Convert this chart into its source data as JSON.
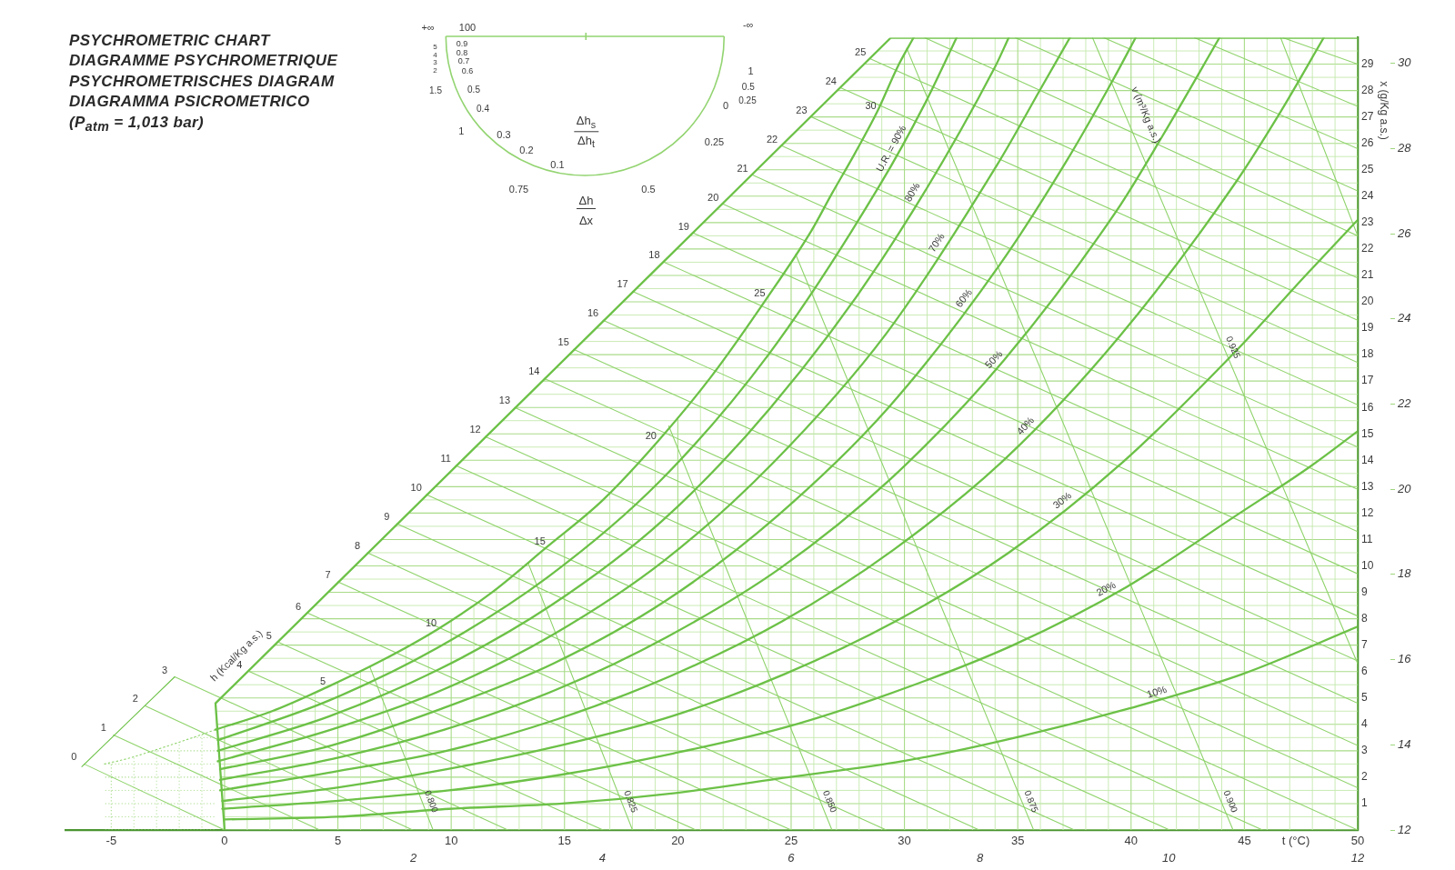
{
  "chart_data": {
    "type": "line",
    "title": "PSYCHROMETRIC CHART",
    "xlabel": "t (°C)",
    "ylabel": "x (g/Kg a.s.)",
    "xlim": [
      -7,
      50
    ],
    "xticks": [
      -5,
      {
        "value": -4,
        "label": null
      },
      {
        "value": -3,
        "label": null
      },
      {
        "value": -2,
        "label": null
      },
      {
        "value": -1,
        "label": null
      },
      0,
      {
        "value": 1,
        "label": null
      },
      {
        "value": 2,
        "label": null
      },
      {
        "value": 3,
        "label": null
      },
      {
        "value": 4,
        "label": null
      },
      5,
      {
        "value": 6,
        "label": null
      },
      {
        "value": 7,
        "label": null
      },
      {
        "value": 8,
        "label": null
      },
      {
        "value": 9,
        "label": null
      },
      10,
      {
        "value": 11,
        "label": null
      },
      {
        "value": 12,
        "label": null
      },
      {
        "value": 13,
        "label": null
      },
      {
        "value": 14,
        "label": null
      },
      15,
      {
        "value": 16,
        "label": null
      },
      {
        "value": 17,
        "label": null
      },
      {
        "value": 18,
        "label": null
      },
      {
        "value": 19,
        "label": null
      },
      20,
      {
        "value": 21,
        "label": null
      },
      {
        "value": 22,
        "label": null
      },
      {
        "value": 23,
        "label": null
      },
      {
        "value": 24,
        "label": null
      },
      25,
      {
        "value": 26,
        "label": null
      },
      {
        "value": 27,
        "label": null
      },
      {
        "value": 28,
        "label": null
      },
      {
        "value": 29,
        "label": null
      },
      30,
      {
        "value": 31,
        "label": null
      },
      {
        "value": 32,
        "label": null
      },
      {
        "value": 33,
        "label": null
      },
      {
        "value": 34,
        "label": null
      },
      35,
      {
        "value": 36,
        "label": null
      },
      {
        "value": 37,
        "label": null
      },
      {
        "value": 38,
        "label": null
      },
      {
        "value": 39,
        "label": null
      },
      40,
      {
        "value": 41,
        "label": null
      },
      {
        "value": 42,
        "label": null
      },
      {
        "value": 43,
        "label": null
      },
      {
        "value": 44,
        "label": null
      },
      45,
      {
        "value": 46,
        "label": null
      },
      {
        "value": 47,
        "label": null
      },
      {
        "value": 48,
        "label": null
      },
      {
        "value": 49,
        "label": null
      },
      50
    ],
    "ylim": [
      0,
      30
    ],
    "yticks": [
      {
        "value": 0,
        "label": null
      },
      {
        "value": 0.5,
        "label": null
      },
      1,
      {
        "value": 1.5,
        "label": null
      },
      2,
      {
        "value": 2.5,
        "label": null
      },
      3,
      {
        "value": 3.5,
        "label": null
      },
      4,
      {
        "value": 4.5,
        "label": null
      },
      5,
      {
        "value": 5.5,
        "label": null
      },
      6,
      {
        "value": 6.5,
        "label": null
      },
      7,
      {
        "value": 7.5,
        "label": null
      },
      8,
      {
        "value": 8.5,
        "label": null
      },
      9,
      {
        "value": 9.5,
        "label": null
      },
      10,
      {
        "value": 10.5,
        "label": null
      },
      11,
      {
        "value": 11.5,
        "label": null
      },
      12,
      {
        "value": 12.5,
        "label": null
      },
      13,
      {
        "value": 13.5,
        "label": null
      },
      14,
      {
        "value": 14.5,
        "label": null
      },
      15,
      {
        "value": 15.5,
        "label": null
      },
      16,
      {
        "value": 16.5,
        "label": null
      },
      17,
      {
        "value": 17.5,
        "label": null
      },
      18,
      {
        "value": 18.5,
        "label": null
      },
      19,
      {
        "value": 19.5,
        "label": null
      },
      20,
      {
        "value": 20.5,
        "label": null
      },
      21,
      {
        "value": 21.5,
        "label": null
      },
      22,
      {
        "value": 22.5,
        "label": null
      },
      23,
      {
        "value": 23.5,
        "label": null
      },
      24,
      {
        "value": 24.5,
        "label": null
      },
      25,
      {
        "value": 25.5,
        "label": null
      },
      26,
      {
        "value": 26.5,
        "label": null
      },
      27,
      {
        "value": 27.5,
        "label": null
      },
      28,
      {
        "value": 28.5,
        "label": null
      },
      29,
      {
        "value": 29.5,
        "label": null
      },
      {
        "value": 30,
        "label": null
      }
    ],
    "x2lim": [
      -1.68,
      12
    ],
    "x2ticks": [
      2,
      4,
      6,
      8,
      10,
      12
    ],
    "y2lim": [
      12,
      30.6
    ],
    "y2ticks": [
      12,
      14,
      16,
      18,
      20,
      22,
      24,
      26,
      28,
      30
    ],
    "grid": true,
    "marker": "none",
    "annotations": [
      "DIAGRAMME PSYCHROMETRIQUE",
      "PSYCHROMETRISCHES DIAGRAM",
      "DIAGRAMMA PSICROMETRICO",
      "(P$_{atm}$ = 1,013 bar)",
      "+∞",
      "100",
      "-∞",
      "0.9",
      "0.8",
      "0.7",
      "0.6",
      "0.5",
      "0.4",
      "0.3",
      "0.2",
      "0.1",
      "5",
      "4",
      "3",
      "2",
      "1.5",
      "1",
      "0.75",
      "0.5",
      "0.25",
      "0",
      "0.25",
      "0.5",
      "1",
      "Δh$_{s}$",
      "Δh$_{t}$",
      "Δh",
      "Δx",
      {
        "text": "5",
        "x": 4.5,
        "y": 5.4
      },
      {
        "text": "10",
        "x": 9.4,
        "y": 7.6
      },
      {
        "text": "15",
        "x": 14.2,
        "y": 10.7
      },
      {
        "text": "20",
        "x": 19.1,
        "y": 14.7
      },
      {
        "text": "25",
        "x": 23.9,
        "y": 20.1
      },
      {
        "text": "30",
        "x": 28.8,
        "y": 27.2
      },
      {
        "text": "h (Kcal/Kg a.s.)",
        "x": 1.1,
        "y": 6.1
      },
      {
        "text": "v (m³/Kg a.s.)",
        "x": 39.9,
        "y": 26.8
      }
    ],
    "series": [
      {
        "color": "#6cc147",
        "x": [
          0,
          -0.4,
          29.4,
          50
        ],
        "values": [
          0,
          4.8,
          30,
          30
        ]
      },
      {
        "color": "#6cc147",
        "x": [
          -0.4,
          2.1,
          4.5,
          6.9,
          9.4,
          11.8,
          14.2,
          16.7,
          19.1,
          21.5,
          23.9,
          25.9,
          26.8,
          27.8,
          28.8,
          29.7,
          30.4
        ],
        "values": [
          3.8,
          4.5,
          5.4,
          6.4,
          7.6,
          9.0,
          10.7,
          12.5,
          14.7,
          17.2,
          20.1,
          22.7,
          24.1,
          25.6,
          27.2,
          28.9,
          30
        ]
      },
      {
        "color": "#8fd36b",
        "line_style": "dotted",
        "x": [
          -5.3,
          -4.3,
          -2.8,
          -1.4,
          -0.4
        ],
        "values": [
          2.5,
          2.7,
          3.1,
          3.5,
          3.8
        ]
      },
      {
        "name": "U.R. = 90%",
        "color": "#6cc147",
        "x": [
          -0.3,
          4.6,
          9.4,
          14.3,
          19.2,
          24.0,
          28.9,
          30.9,
          32.3
        ],
        "values": [
          3.4,
          4.9,
          6.9,
          9.6,
          13.2,
          18.0,
          24.4,
          27.5,
          30
        ]
      },
      {
        "name": "80%",
        "color": "#6cc147",
        "x": [
          -0.3,
          4.6,
          9.5,
          14.4,
          19.3,
          24.1,
          29.0,
          34.0,
          34.6
        ],
        "values": [
          3.0,
          4.3,
          6.1,
          8.5,
          11.7,
          16.0,
          21.6,
          28.9,
          30
        ]
      },
      {
        "name": "70%",
        "color": "#6cc147",
        "x": [
          -0.3,
          4.7,
          9.6,
          14.5,
          19.4,
          24.2,
          29.2,
          34.1,
          36.1,
          37.3
        ],
        "values": [
          2.6,
          3.8,
          5.3,
          7.4,
          10.2,
          13.9,
          18.8,
          25.2,
          28.2,
          30
        ]
      },
      {
        "name": "60%",
        "color": "#6cc147",
        "x": [
          -0.2,
          4.7,
          9.6,
          14.5,
          19.5,
          24.4,
          29.3,
          34.2,
          37.2,
          39.2,
          40.2
        ],
        "values": [
          2.3,
          3.2,
          4.6,
          6.3,
          8.7,
          11.9,
          16.0,
          21.4,
          25.4,
          28.4,
          30
        ]
      },
      {
        "name": "50%",
        "color": "#6cc147",
        "x": [
          -0.2,
          4.8,
          9.7,
          14.6,
          19.5,
          24.5,
          29.4,
          34.4,
          39.4,
          41.4,
          43.9
        ],
        "values": [
          1.9,
          2.7,
          3.8,
          5.3,
          7.3,
          9.9,
          13.3,
          17.8,
          23.5,
          26.3,
          30
        ]
      },
      {
        "name": "40%",
        "color": "#6cc147",
        "x": [
          -0.2,
          4.8,
          9.8,
          14.7,
          19.6,
          24.6,
          29.5,
          34.5,
          39.5,
          44.6,
          46.6,
          48.5
        ],
        "values": [
          1.5,
          2.2,
          3.0,
          4.2,
          5.8,
          7.9,
          10.6,
          14.1,
          18.7,
          24.5,
          27.2,
          30
        ]
      },
      {
        "name": "30%",
        "color": "#6cc147",
        "x": [
          -0.1,
          4.9,
          9.8,
          14.8,
          19.7,
          24.7,
          29.6,
          34.6,
          39.6,
          44.7,
          47.7,
          50
        ],
        "values": [
          1.1,
          1.6,
          2.3,
          3.2,
          4.3,
          5.9,
          7.9,
          10.5,
          13.9,
          18.2,
          21.0,
          23.1
        ]
      },
      {
        "name": "20%",
        "color": "#6cc147",
        "x": [
          -0.1,
          4.9,
          9.9,
          14.9,
          19.8,
          24.8,
          29.8,
          34.8,
          39.8,
          44.8,
          47.8,
          50
        ],
        "values": [
          0.8,
          1.1,
          1.5,
          2.1,
          2.9,
          3.9,
          5.3,
          7.0,
          9.2,
          12.0,
          13.7,
          15.1
        ]
      },
      {
        "name": "10%",
        "color": "#6cc147",
        "x": [
          0,
          5,
          9.9,
          14.9,
          19.9,
          24.9,
          29.9,
          34.9,
          39.9,
          44.9,
          50
        ],
        "values": [
          0.4,
          0.5,
          0.8,
          1.0,
          1.4,
          2.0,
          2.6,
          3.5,
          4.6,
          5.9,
          7.7
        ]
      },
      {
        "color": "#6cc147",
        "x": [
          -6.3,
          -2.2
        ],
        "values": [
          2.4,
          5.8
        ]
      },
      {
        "name": "0",
        "color": "#8fd36b",
        "x": [
          -6.2,
          0
        ],
        "values": [
          2.5,
          0
        ]
      },
      {
        "name": "1",
        "color": "#8fd36b",
        "x": [
          -4.9,
          4.2
        ],
        "values": [
          3.6,
          0
        ]
      },
      {
        "name": "2",
        "color": "#8fd36b",
        "x": [
          -3.5,
          8.3
        ],
        "values": [
          4.7,
          0
        ]
      },
      {
        "name": "3",
        "color": "#8fd36b",
        "x": [
          -2.2,
          12.5
        ],
        "values": [
          5.8,
          0
        ]
      },
      {
        "name": "4",
        "color": "#8fd36b",
        "x": [
          1.1,
          16.7
        ],
        "values": [
          6.0,
          0
        ]
      },
      {
        "name": "5",
        "color": "#8fd36b",
        "x": [
          2.4,
          20.8
        ],
        "values": [
          7.1,
          0
        ]
      },
      {
        "name": "6",
        "color": "#8fd36b",
        "x": [
          3.7,
          25
        ],
        "values": [
          8.2,
          0
        ]
      },
      {
        "name": "7",
        "color": "#8fd36b",
        "x": [
          5.0,
          29.2
        ],
        "values": [
          9.4,
          0
        ]
      },
      {
        "name": "8",
        "color": "#8fd36b",
        "x": [
          6.3,
          33.3
        ],
        "values": [
          10.5,
          0
        ]
      },
      {
        "name": "9",
        "color": "#8fd36b",
        "x": [
          7.6,
          37.5
        ],
        "values": [
          11.6,
          0
        ]
      },
      {
        "name": "10",
        "color": "#8fd36b",
        "x": [
          8.9,
          41.7
        ],
        "values": [
          12.7,
          0
        ]
      },
      {
        "name": "11",
        "color": "#8fd36b",
        "x": [
          10.2,
          45.8
        ],
        "values": [
          13.8,
          0
        ]
      },
      {
        "name": "12",
        "color": "#8fd36b",
        "x": [
          11.5,
          50
        ],
        "values": [
          14.9,
          0
        ]
      },
      {
        "name": "13",
        "color": "#8fd36b",
        "x": [
          12.8,
          50
        ],
        "values": [
          16.0,
          1.6
        ]
      },
      {
        "name": "14",
        "color": "#8fd36b",
        "x": [
          14.1,
          50
        ],
        "values": [
          17.1,
          3.2
        ]
      },
      {
        "name": "15",
        "color": "#8fd36b",
        "x": [
          15.4,
          50
        ],
        "values": [
          18.2,
          4.8
        ]
      },
      {
        "name": "16",
        "color": "#8fd36b",
        "x": [
          16.7,
          50
        ],
        "values": [
          19.3,
          6.4
        ]
      },
      {
        "name": "17",
        "color": "#8fd36b",
        "x": [
          18.0,
          50
        ],
        "values": [
          20.4,
          8.1
        ]
      },
      {
        "name": "18",
        "color": "#8fd36b",
        "x": [
          19.4,
          50
        ],
        "values": [
          21.5,
          9.7
        ]
      },
      {
        "name": "19",
        "color": "#8fd36b",
        "x": [
          20.7,
          50
        ],
        "values": [
          22.6,
          11.3
        ]
      },
      {
        "name": "20",
        "color": "#8fd36b",
        "x": [
          22.0,
          50
        ],
        "values": [
          23.7,
          12.9
        ]
      },
      {
        "name": "21",
        "color": "#8fd36b",
        "x": [
          23.3,
          50
        ],
        "values": [
          24.8,
          14.5
        ]
      },
      {
        "name": "22",
        "color": "#8fd36b",
        "x": [
          24.6,
          50
        ],
        "values": [
          25.9,
          16.1
        ]
      },
      {
        "name": "23",
        "color": "#8fd36b",
        "x": [
          25.9,
          50
        ],
        "values": [
          27.0,
          17.7
        ]
      },
      {
        "name": "24",
        "color": "#8fd36b",
        "x": [
          27.2,
          50
        ],
        "values": [
          28.1,
          19.3
        ]
      },
      {
        "name": "25",
        "color": "#8fd36b",
        "x": [
          28.5,
          50
        ],
        "values": [
          29.2,
          20.9
        ]
      },
      {
        "color": "#8fd36b",
        "x": [
          30.9,
          50
        ],
        "values": [
          30,
          22.5
        ]
      },
      {
        "color": "#8fd36b",
        "x": [
          34.9,
          50
        ],
        "values": [
          30,
          24.2
        ]
      },
      {
        "color": "#8fd36b",
        "x": [
          38.8,
          50
        ],
        "values": [
          30,
          25.8
        ]
      },
      {
        "color": "#8fd36b",
        "x": [
          42.8,
          50
        ],
        "values": [
          30,
          27.4
        ]
      },
      {
        "color": "#8fd36b",
        "x": [
          46.7,
          50
        ],
        "values": [
          30,
          29.0
        ]
      },
      {
        "name": "0.800",
        "color": "#8fd36b",
        "x": [
          9.2,
          6.4
        ],
        "values": [
          0,
          6.2
        ]
      },
      {
        "name": "0.825",
        "color": "#8fd36b",
        "x": [
          18.0,
          13.4
        ],
        "values": [
          0,
          10.1
        ]
      },
      {
        "name": "0.850",
        "color": "#8fd36b",
        "x": [
          26.8,
          19.6
        ],
        "values": [
          0,
          15.3
        ]
      },
      {
        "name": "0.875",
        "color": "#8fd36b",
        "x": [
          35.7,
          25.2
        ],
        "values": [
          0,
          21.8
        ]
      },
      {
        "name": "0.900",
        "color": "#8fd36b",
        "x": [
          44.5,
          30.1
        ],
        "values": [
          0,
          29.6
        ]
      },
      {
        "name": "0.925",
        "color": "#8fd36b",
        "x": [
          50,
          38.3
        ],
        "values": [
          6.3,
          30
        ]
      },
      {
        "color": "#8fd36b",
        "x": [
          50,
          46.6
        ],
        "values": [
          22.5,
          30
        ]
      }
    ]
  }
}
